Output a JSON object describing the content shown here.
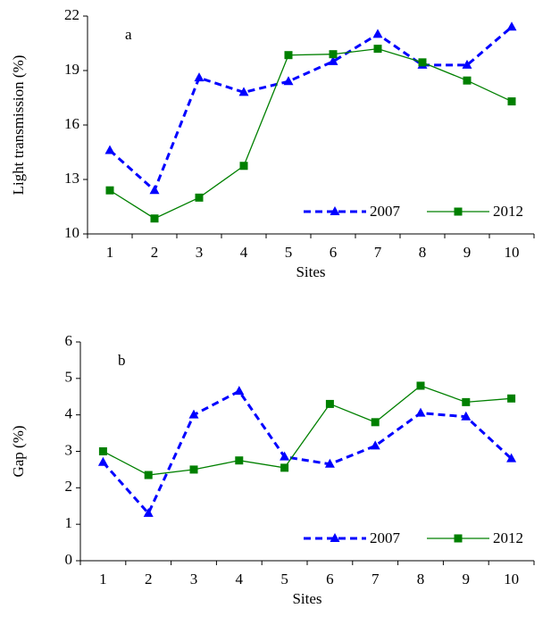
{
  "chart_data": [
    {
      "type": "line",
      "annotation": "a",
      "x_label": "Sites",
      "y_label": "Light transmission (%)",
      "categories": [
        "1",
        "2",
        "3",
        "4",
        "5",
        "6",
        "7",
        "8",
        "9",
        "10"
      ],
      "ylim": [
        10,
        22
      ],
      "yticks": [
        10,
        13,
        16,
        19,
        22
      ],
      "legend": "lower right",
      "series": [
        {
          "name": "2007",
          "color": "#0000ff",
          "linestyle": "dashed",
          "marker": "triangle",
          "values": [
            14.6,
            12.4,
            18.6,
            17.8,
            18.4,
            19.5,
            21.0,
            19.3,
            19.3,
            21.4
          ]
        },
        {
          "name": "2012",
          "color": "#008000",
          "linestyle": "solid",
          "marker": "square",
          "values": [
            12.4,
            10.85,
            12.0,
            13.75,
            19.85,
            19.9,
            20.2,
            19.45,
            18.45,
            17.3
          ]
        }
      ]
    },
    {
      "type": "line",
      "annotation": "b",
      "x_label": "Sites",
      "y_label": "Gap (%)",
      "categories": [
        "1",
        "2",
        "3",
        "4",
        "5",
        "6",
        "7",
        "8",
        "9",
        "10"
      ],
      "ylim": [
        0,
        6
      ],
      "yticks": [
        0,
        1,
        2,
        3,
        4,
        5,
        6
      ],
      "legend": "lower right",
      "series": [
        {
          "name": "2007",
          "color": "#0000ff",
          "linestyle": "dashed",
          "marker": "triangle",
          "values": [
            2.7,
            1.3,
            4.0,
            4.65,
            2.85,
            2.65,
            3.15,
            4.05,
            3.95,
            2.8
          ]
        },
        {
          "name": "2012",
          "color": "#008000",
          "linestyle": "solid",
          "marker": "square",
          "values": [
            3.0,
            2.35,
            2.5,
            2.75,
            2.55,
            4.3,
            3.8,
            4.8,
            4.35,
            4.45
          ]
        }
      ]
    }
  ]
}
